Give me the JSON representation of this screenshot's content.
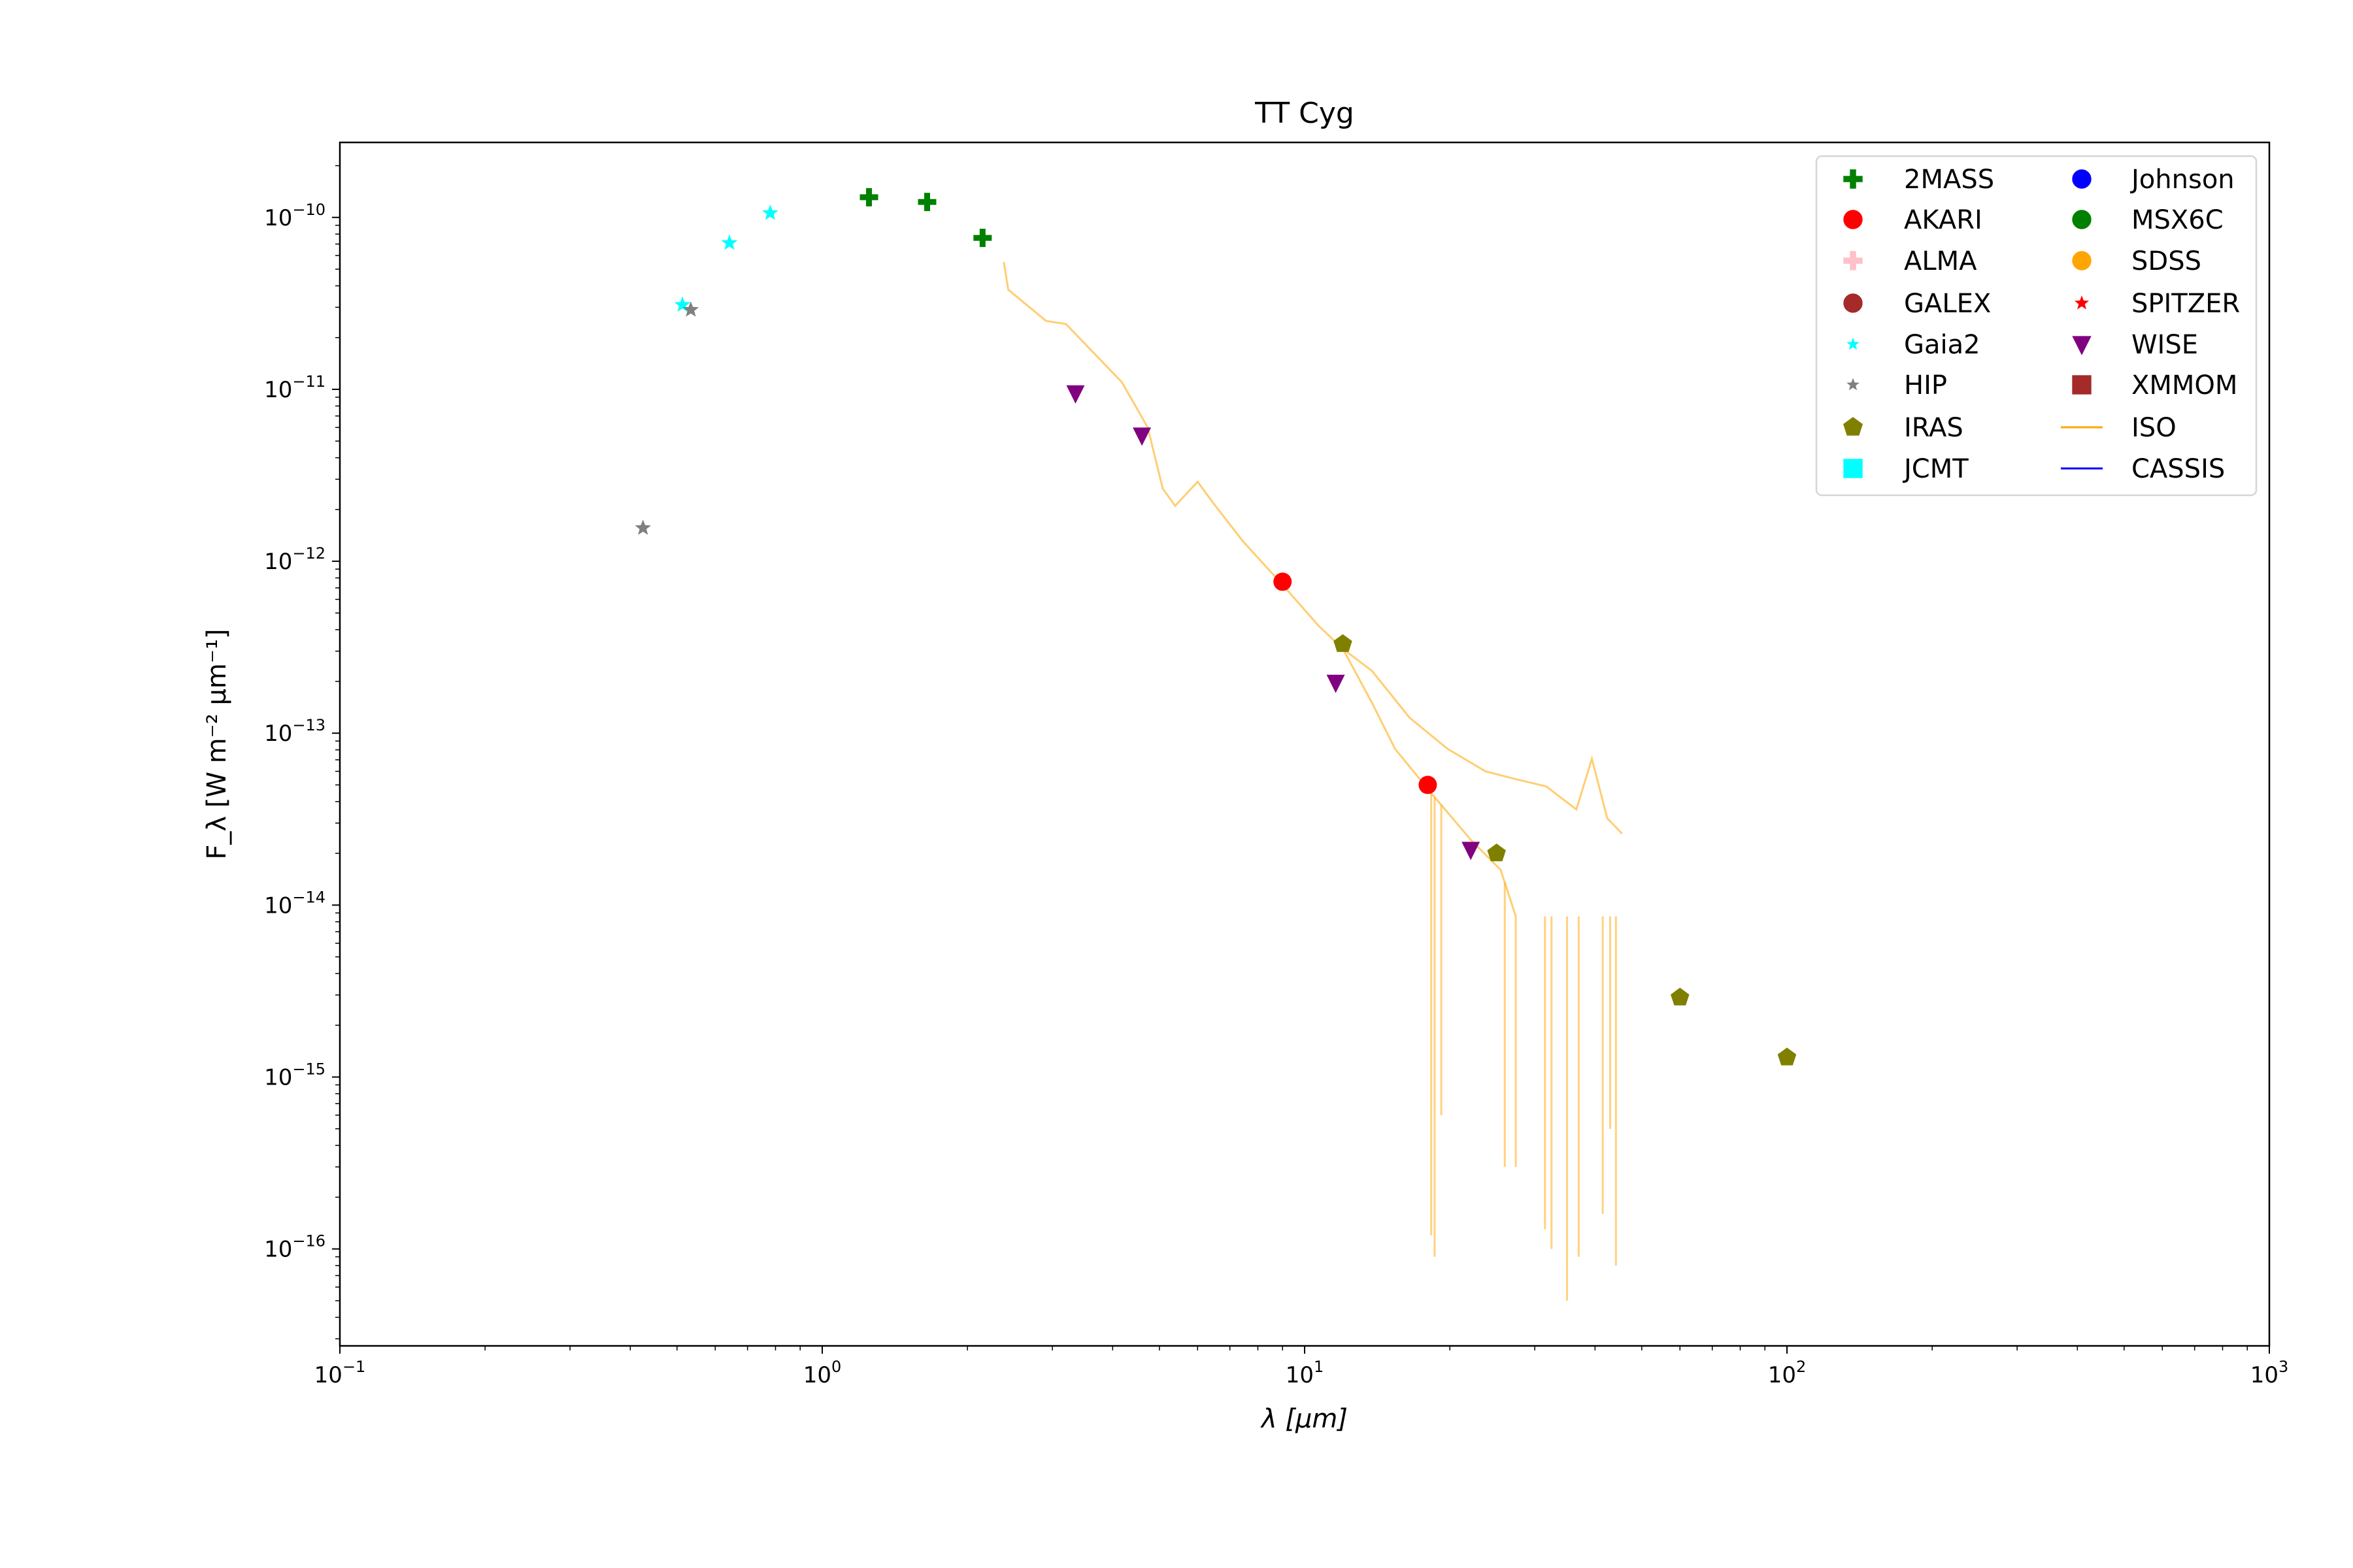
{
  "chart_data": {
    "type": "scatter",
    "title": "TT Cyg",
    "xlabel": "λ [μm]",
    "ylabel": "F_λ [W m⁻² μm⁻¹]",
    "ylabel_parts": {
      "F": "F",
      "sub": "λ",
      "unit_a": " [W m",
      "exp_a": "−2",
      "unit_b": "μm",
      "exp_b": "−1",
      "unit_c": "]"
    },
    "xscale": "log",
    "yscale": "log",
    "xlim": [
      0.1,
      1000
    ],
    "ylim": [
      2.73e-17,
      2.73e-10
    ],
    "grid": false,
    "legend_placement": "top-right",
    "x_ticks": [
      {
        "base": "10",
        "exp": "−1",
        "value": 0.1
      },
      {
        "base": "10",
        "exp": "0",
        "value": 1
      },
      {
        "base": "10",
        "exp": "1",
        "value": 10
      },
      {
        "base": "10",
        "exp": "2",
        "value": 100
      },
      {
        "base": "10",
        "exp": "3",
        "value": 1000
      }
    ],
    "y_ticks": [
      {
        "base": "10",
        "exp": "−10",
        "value": 1e-10
      },
      {
        "base": "10",
        "exp": "−11",
        "value": 1e-11
      },
      {
        "base": "10",
        "exp": "−12",
        "value": 1e-12
      },
      {
        "base": "10",
        "exp": "−13",
        "value": 1e-13
      },
      {
        "base": "10",
        "exp": "−14",
        "value": 1e-14
      },
      {
        "base": "10",
        "exp": "−15",
        "value": 1e-15
      },
      {
        "base": "10",
        "exp": "−16",
        "value": 1e-16
      }
    ],
    "series": [
      {
        "name": "2MASS",
        "marker": "plus",
        "color": "#008000",
        "points": [
          [
            1.25,
            1.31e-10
          ],
          [
            1.65,
            1.23e-10
          ],
          [
            2.15,
            7.6e-11
          ]
        ]
      },
      {
        "name": "AKARI",
        "marker": "circle",
        "color": "#ff0000",
        "points": [
          [
            9.0,
            7.6e-13
          ],
          [
            18.0,
            5e-14
          ]
        ]
      },
      {
        "name": "ALMA",
        "marker": "plus",
        "color": "#ffc0cb",
        "points": []
      },
      {
        "name": "GALEX",
        "marker": "circle",
        "color": "#a52a2a",
        "points": []
      },
      {
        "name": "Gaia2",
        "marker": "star",
        "color": "#00ffff",
        "points": [
          [
            0.513,
            3.1e-11
          ],
          [
            0.642,
            7.1e-11
          ],
          [
            0.78,
            1.06e-10
          ]
        ]
      },
      {
        "name": "HIP",
        "marker": "star",
        "color": "#808080",
        "points": [
          [
            0.534,
            2.9e-11
          ],
          [
            0.425,
            1.56e-12
          ]
        ]
      },
      {
        "name": "IRAS",
        "marker": "pentagon",
        "color": "#808000",
        "points": [
          [
            12.0,
            3.3e-13
          ],
          [
            25.0,
            2e-14
          ],
          [
            60.0,
            2.9e-15
          ],
          [
            100.0,
            1.3e-15
          ]
        ]
      },
      {
        "name": "JCMT",
        "marker": "square",
        "color": "#00ffff",
        "points": []
      },
      {
        "name": "Johnson",
        "marker": "circle",
        "color": "#0000ff",
        "points": []
      },
      {
        "name": "MSX6C",
        "marker": "circle",
        "color": "#008000",
        "points": []
      },
      {
        "name": "SDSS",
        "marker": "circle",
        "color": "#ffa500",
        "points": []
      },
      {
        "name": "SPITZER",
        "marker": "star-small",
        "color": "#ff0000",
        "points": []
      },
      {
        "name": "WISE",
        "marker": "triangle-down",
        "color": "#800080",
        "points": [
          [
            3.35,
            9.5e-12
          ],
          [
            4.6,
            5.4e-12
          ],
          [
            11.6,
            1.97e-13
          ],
          [
            22.1,
            2.1e-14
          ]
        ]
      },
      {
        "name": "XMMOM",
        "marker": "square",
        "color": "#a52a2a",
        "points": []
      },
      {
        "name": "ISO",
        "marker": "line",
        "color": "#ffa500",
        "lines": [
          [
            [
              2.38,
              5.5e-11
            ],
            [
              2.43,
              3.8e-11
            ],
            [
              2.91,
              2.5e-11
            ],
            [
              3.2,
              2.4e-11
            ],
            [
              4.18,
              1.1e-11
            ],
            [
              4.73,
              6e-12
            ],
            [
              5.08,
              2.65e-12
            ],
            [
              5.39,
              2.1e-12
            ],
            [
              6.0,
              2.9e-12
            ],
            [
              6.45,
              2.2e-12
            ],
            [
              7.46,
              1.3e-12
            ],
            [
              9.0,
              7.3e-13
            ],
            [
              10.7,
              4.2e-13
            ],
            [
              12.0,
              3.1e-13
            ],
            [
              13.8,
              1.5e-13
            ],
            [
              15.4,
              8.1e-14
            ],
            [
              18.4,
              4.4e-14
            ],
            [
              22.1,
              2.4e-14
            ],
            [
              25.5,
              1.6e-14
            ],
            [
              27.4,
              8.6e-15
            ]
          ],
          [
            [
              12.0,
              3.1e-13
            ],
            [
              13.8,
              2.3e-13
            ],
            [
              16.5,
              1.23e-13
            ],
            [
              19.8,
              8.1e-14
            ],
            [
              23.7,
              6e-14
            ],
            [
              27.4,
              5.4e-14
            ],
            [
              31.7,
              4.9e-14
            ],
            [
              36.6,
              3.6e-14
            ],
            [
              39.4,
              7.1e-14
            ],
            [
              42.4,
              3.2e-14
            ],
            [
              45.5,
              2.6e-14
            ]
          ]
        ],
        "dips": [
          [
            18.3,
            1.2e-16
          ],
          [
            18.6,
            9e-17
          ],
          [
            19.2,
            6e-16
          ],
          [
            26.0,
            3e-16
          ],
          [
            27.4,
            3e-16
          ],
          [
            31.5,
            1.3e-16
          ],
          [
            32.5,
            1e-16
          ],
          [
            35.0,
            5e-17
          ],
          [
            37.0,
            9e-17
          ],
          [
            41.5,
            1.6e-16
          ],
          [
            43.0,
            5e-16
          ],
          [
            44.2,
            8e-17
          ]
        ]
      },
      {
        "name": "CASSIS",
        "marker": "line",
        "color": "#0000ff",
        "points": []
      }
    ]
  }
}
